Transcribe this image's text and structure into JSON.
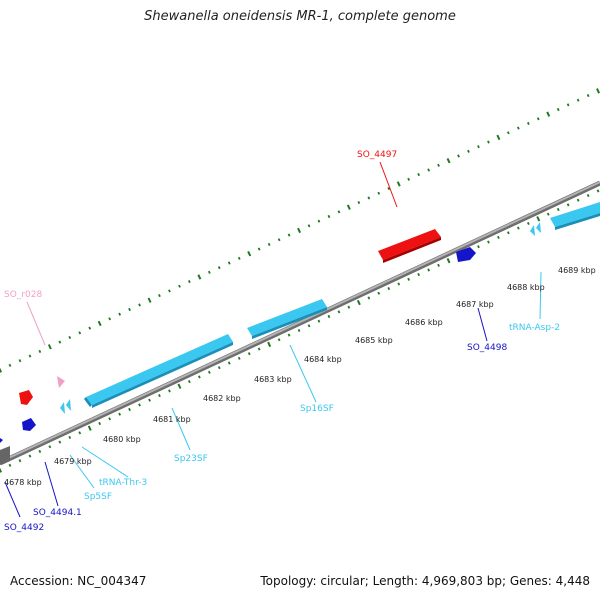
{
  "title": "Shewanella oneidensis MR-1, complete genome",
  "footer": {
    "accession": "Accession: NC_004347",
    "summary": "Topology: circular; Length: 4,969,803 bp; Genes: 4,448"
  },
  "colors": {
    "cds": "#3bc8f0",
    "gene_red": "#ee1111",
    "gene_blue": "#1414c8",
    "gene_pink": "#f0a0c8",
    "backbone": "#8a8a8a",
    "tick": "#1f7a1f"
  },
  "ruler": {
    "labels": [
      "4678 kbp",
      "4679 kbp",
      "4680 kbp",
      "4681 kbp",
      "4682 kbp",
      "4683 kbp",
      "4684 kbp",
      "4685 kbp",
      "4686 kbp",
      "4687 kbp",
      "4688 kbp",
      "4689 kbp"
    ]
  },
  "genes": [
    {
      "id": "so4497",
      "label": "SO_4497",
      "color": "#ee1111"
    },
    {
      "id": "sor028",
      "label": "SO_r028",
      "color": "#f0a0c8"
    },
    {
      "id": "so4498",
      "label": "SO_4498",
      "color": "#1414c8"
    },
    {
      "id": "trnaasp2",
      "label": "tRNA-Asp-2",
      "color": "#3bc8f0"
    },
    {
      "id": "sp16sf",
      "label": "Sp16SF",
      "color": "#3bc8f0"
    },
    {
      "id": "sp23sf",
      "label": "Sp23SF",
      "color": "#3bc8f0"
    },
    {
      "id": "trnathr3",
      "label": "tRNA-Thr-3",
      "color": "#3bc8f0"
    },
    {
      "id": "sp5sf",
      "label": "Sp5SF",
      "color": "#3bc8f0"
    },
    {
      "id": "so44941",
      "label": "SO_4494.1",
      "color": "#1414c8"
    },
    {
      "id": "so4492",
      "label": "SO_4492",
      "color": "#1414c8"
    }
  ]
}
